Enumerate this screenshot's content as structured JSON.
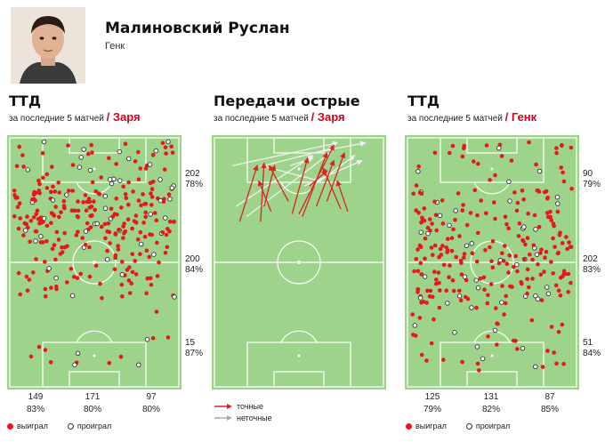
{
  "player": {
    "name": "Малиновский Руслан",
    "team": "Генк"
  },
  "legend": {
    "won": "выиграл",
    "lost": "проиграл",
    "accurate": "точные",
    "inaccurate": "неточные"
  },
  "colors": {
    "pitch": "#9dd38a",
    "lines": "#ffffff",
    "won": "#e8171a",
    "lost": "#ffffff",
    "pass_accurate": "#d8251f",
    "pass_inaccurate": "#f2f2f2"
  },
  "chart_data": [
    {
      "type": "scatter",
      "title": "ТТД",
      "subtitle": "за последние 5 матчей",
      "team": "/ Заря",
      "zones_right": [
        {
          "count": "202",
          "pct": "78%"
        },
        {
          "count": "200",
          "pct": "84%"
        },
        {
          "count": "15",
          "pct": "87%"
        }
      ],
      "zones_bottom": [
        {
          "count": "149",
          "pct": "83%"
        },
        {
          "count": "171",
          "pct": "80%"
        },
        {
          "count": "97",
          "pct": "80%"
        }
      ]
    },
    {
      "type": "line",
      "title": "Передачи острые",
      "subtitle": "за последние 5 матчей",
      "team": "/ Заря",
      "passes": [
        {
          "from": [
            0.2,
            0.32
          ],
          "to": [
            0.68,
            0.07
          ],
          "accurate": false
        },
        {
          "from": [
            0.12,
            0.12
          ],
          "to": [
            0.72,
            0.03
          ],
          "accurate": false
        },
        {
          "from": [
            0.3,
            0.12
          ],
          "to": [
            0.7,
            0.05
          ],
          "accurate": false
        },
        {
          "from": [
            0.45,
            0.12
          ],
          "to": [
            0.58,
            0.09
          ],
          "accurate": false
        },
        {
          "from": [
            0.53,
            0.2
          ],
          "to": [
            0.86,
            0.1
          ],
          "accurate": false
        },
        {
          "from": [
            0.14,
            0.28
          ],
          "to": [
            0.58,
            0.08
          ],
          "accurate": false
        },
        {
          "from": [
            0.28,
            0.12
          ],
          "to": [
            0.62,
            0.18
          ],
          "accurate": false
        },
        {
          "from": [
            0.62,
            0.18
          ],
          "to": [
            0.82,
            0.08
          ],
          "accurate": false
        },
        {
          "from": [
            0.58,
            0.07
          ],
          "to": [
            0.88,
            0.03
          ],
          "accurate": false
        },
        {
          "from": [
            0.16,
            0.34
          ],
          "to": [
            0.26,
            0.12
          ],
          "accurate": true
        },
        {
          "from": [
            0.28,
            0.34
          ],
          "to": [
            0.3,
            0.11
          ],
          "accurate": true
        },
        {
          "from": [
            0.3,
            0.28
          ],
          "to": [
            0.36,
            0.12
          ],
          "accurate": true
        },
        {
          "from": [
            0.44,
            0.26
          ],
          "to": [
            0.33,
            0.12
          ],
          "accurate": true
        },
        {
          "from": [
            0.34,
            0.3
          ],
          "to": [
            0.27,
            0.18
          ],
          "accurate": true
        },
        {
          "from": [
            0.46,
            0.31
          ],
          "to": [
            0.55,
            0.09
          ],
          "accurate": true
        },
        {
          "from": [
            0.52,
            0.32
          ],
          "to": [
            0.66,
            0.07
          ],
          "accurate": true
        },
        {
          "from": [
            0.6,
            0.28
          ],
          "to": [
            0.7,
            0.1
          ],
          "accurate": true
        },
        {
          "from": [
            0.74,
            0.29
          ],
          "to": [
            0.64,
            0.13
          ],
          "accurate": true
        },
        {
          "from": [
            0.78,
            0.3
          ],
          "to": [
            0.72,
            0.18
          ],
          "accurate": true
        },
        {
          "from": [
            0.5,
            0.31
          ],
          "to": [
            0.7,
            0.04
          ],
          "accurate": true
        },
        {
          "from": [
            0.56,
            0.2
          ],
          "to": [
            0.66,
            0.14
          ],
          "accurate": true
        },
        {
          "from": [
            0.66,
            0.26
          ],
          "to": [
            0.76,
            0.07
          ],
          "accurate": true
        }
      ]
    },
    {
      "type": "scatter",
      "title": "ТТД",
      "subtitle": "за последние 5 матчей",
      "team": "/ Генк",
      "zones_right": [
        {
          "count": "90",
          "pct": "79%"
        },
        {
          "count": "202",
          "pct": "83%"
        },
        {
          "count": "51",
          "pct": "84%"
        }
      ],
      "zones_bottom": [
        {
          "count": "125",
          "pct": "79%"
        },
        {
          "count": "131",
          "pct": "82%"
        },
        {
          "count": "87",
          "pct": "85%"
        }
      ]
    }
  ]
}
